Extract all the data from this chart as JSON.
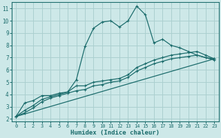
{
  "xlabel": "Humidex (Indice chaleur)",
  "ylabel": "",
  "bg_color": "#cde8e8",
  "grid_color": "#aacfcf",
  "line_color": "#1a6b6b",
  "xlim": [
    -0.5,
    23.5
  ],
  "ylim": [
    1.8,
    11.5
  ],
  "xticks": [
    0,
    1,
    2,
    3,
    4,
    5,
    6,
    7,
    8,
    9,
    10,
    11,
    12,
    13,
    14,
    15,
    16,
    17,
    18,
    19,
    20,
    21,
    22,
    23
  ],
  "yticks": [
    2,
    3,
    4,
    5,
    6,
    7,
    8,
    9,
    10,
    11
  ],
  "line1_x": [
    0,
    1,
    2,
    3,
    4,
    5,
    6,
    7,
    8,
    9,
    10,
    11,
    12,
    13,
    14,
    15,
    16,
    17,
    18,
    19,
    20,
    21,
    22,
    23
  ],
  "line1_y": [
    2.2,
    3.3,
    3.5,
    3.9,
    3.9,
    4.1,
    4.2,
    5.2,
    7.9,
    9.4,
    9.9,
    10.0,
    9.5,
    10.0,
    11.2,
    10.5,
    8.2,
    8.5,
    8.0,
    7.8,
    7.5,
    7.2,
    7.0,
    6.9
  ],
  "line2_x": [
    0,
    1,
    2,
    3,
    4,
    5,
    6,
    7,
    8,
    9,
    10,
    11,
    12,
    13,
    14,
    15,
    16,
    17,
    18,
    19,
    20,
    21,
    22,
    23
  ],
  "line2_y": [
    2.2,
    2.7,
    3.1,
    3.6,
    3.8,
    4.0,
    4.2,
    4.7,
    4.7,
    5.0,
    5.1,
    5.2,
    5.3,
    5.6,
    6.2,
    6.5,
    6.8,
    7.0,
    7.2,
    7.3,
    7.4,
    7.5,
    7.2,
    6.9
  ],
  "line3_x": [
    0,
    1,
    2,
    3,
    4,
    5,
    6,
    7,
    8,
    9,
    10,
    11,
    12,
    13,
    14,
    15,
    16,
    17,
    18,
    19,
    20,
    21,
    22,
    23
  ],
  "line3_y": [
    2.2,
    2.5,
    2.9,
    3.4,
    3.7,
    3.9,
    4.1,
    4.3,
    4.4,
    4.7,
    4.8,
    5.0,
    5.1,
    5.4,
    5.9,
    6.2,
    6.5,
    6.7,
    6.9,
    7.0,
    7.1,
    7.2,
    7.0,
    6.8
  ],
  "line4_x": [
    0,
    23
  ],
  "line4_y": [
    2.2,
    6.9
  ]
}
